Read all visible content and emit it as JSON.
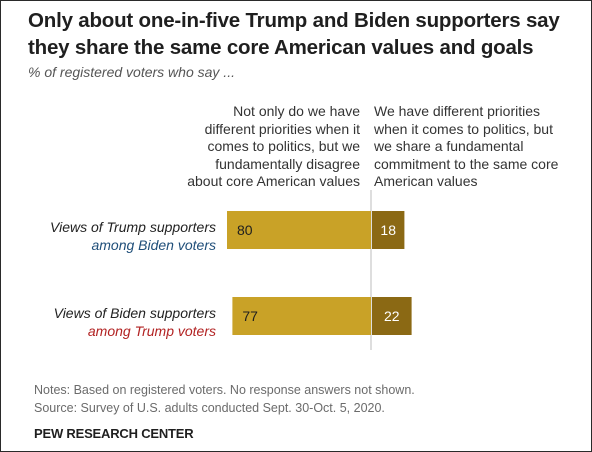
{
  "title": "Only about one-in-five Trump and Biden supporters say they share the same core American values and goals",
  "subtitle": "% of registered voters who say ...",
  "columns": {
    "left": "Not only do we have different priorities when it comes to politics, but we fundamentally disagree about core American values",
    "right": "We have different priorities when it comes to politics, but we share a fundamental commitment to the same core American values"
  },
  "rows": [
    {
      "label_line1": "Views of Trump supporters",
      "label_line2": "among Biden voters",
      "label_line2_color": "#1f4e79"
    },
    {
      "label_line1": "Views of Biden supporters",
      "label_line2": "among Trump voters",
      "label_line2_color": "#b22222"
    }
  ],
  "chart_data": {
    "type": "bar",
    "orientation": "horizontal-diverging",
    "categories": [
      "Views of Trump supporters among Biden voters",
      "Views of Biden supporters among Trump voters"
    ],
    "series": [
      {
        "name": "Not only do we have different priorities when it comes to politics, but we fundamentally disagree about core American values",
        "values": [
          80,
          77
        ],
        "color": "#c9a227"
      },
      {
        "name": "We have different priorities when it comes to politics, but we share a fundamental commitment to the same core American values",
        "values": [
          18,
          22
        ],
        "color": "#8b6914"
      }
    ],
    "data_labels": [
      [
        "80",
        "18"
      ],
      [
        "77",
        "22"
      ]
    ]
  },
  "notes": "Notes: Based on registered voters. No response answers not shown.",
  "source": "Source: Survey of U.S. adults conducted Sept. 30-Oct. 5, 2020.",
  "credit": "PEW RESEARCH CENTER"
}
